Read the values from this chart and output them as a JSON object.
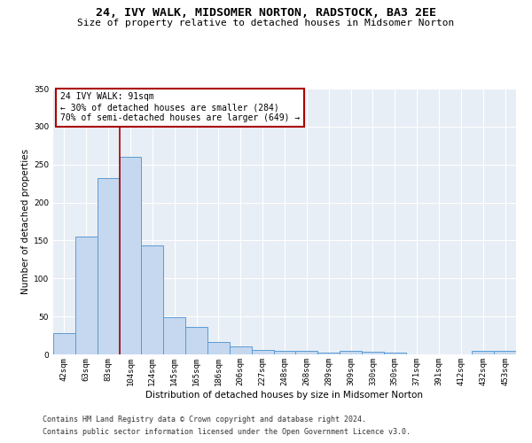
{
  "title": "24, IVY WALK, MIDSOMER NORTON, RADSTOCK, BA3 2EE",
  "subtitle": "Size of property relative to detached houses in Midsomer Norton",
  "xlabel": "Distribution of detached houses by size in Midsomer Norton",
  "ylabel": "Number of detached properties",
  "footnote1": "Contains HM Land Registry data © Crown copyright and database right 2024.",
  "footnote2": "Contains public sector information licensed under the Open Government Licence v3.0.",
  "annotation_line1": "24 IVY WALK: 91sqm",
  "annotation_line2": "← 30% of detached houses are smaller (284)",
  "annotation_line3": "70% of semi-detached houses are larger (649) →",
  "bar_color": "#c5d8ef",
  "bar_edge_color": "#5b9bd5",
  "marker_color": "#aa0000",
  "background_color": "#e8eef6",
  "fig_background": "#ffffff",
  "categories": [
    "42sqm",
    "63sqm",
    "83sqm",
    "104sqm",
    "124sqm",
    "145sqm",
    "165sqm",
    "186sqm",
    "206sqm",
    "227sqm",
    "248sqm",
    "268sqm",
    "289sqm",
    "309sqm",
    "330sqm",
    "350sqm",
    "371sqm",
    "391sqm",
    "412sqm",
    "432sqm",
    "453sqm"
  ],
  "values": [
    28,
    155,
    232,
    260,
    144,
    49,
    36,
    16,
    10,
    6,
    5,
    5,
    2,
    5,
    3,
    2,
    0,
    0,
    0,
    5,
    5
  ],
  "marker_bin_index": 2.5,
  "ylim": [
    0,
    350
  ],
  "yticks": [
    0,
    50,
    100,
    150,
    200,
    250,
    300,
    350
  ],
  "title_fontsize": 9.5,
  "subtitle_fontsize": 8,
  "axis_label_fontsize": 7.5,
  "tick_fontsize": 6.5,
  "annotation_fontsize": 7,
  "footnote_fontsize": 6
}
